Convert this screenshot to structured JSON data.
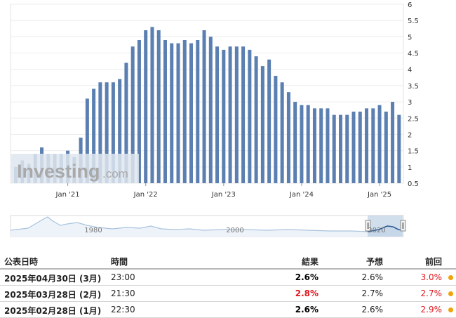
{
  "chart_data": {
    "type": "bar",
    "y_tick_labels": [
      "6",
      "5.5",
      "5",
      "4.5",
      "4",
      "3.5",
      "3",
      "2.5",
      "2",
      "1.5",
      "1",
      "0.5"
    ],
    "ylim": [
      0.5,
      6
    ],
    "x_tick_labels": [
      "Jan '21",
      "Jan '22",
      "Jan '23",
      "Jan '24",
      "Jan '25"
    ],
    "values": [
      1.0,
      1.2,
      1.1,
      1.4,
      1.6,
      1.4,
      1.4,
      1.4,
      1.5,
      1.3,
      1.9,
      3.1,
      3.4,
      3.6,
      3.6,
      3.6,
      3.7,
      4.2,
      4.7,
      4.9,
      5.2,
      5.3,
      5.2,
      4.9,
      4.8,
      4.8,
      4.9,
      4.8,
      4.9,
      5.2,
      5.0,
      4.7,
      4.6,
      4.7,
      4.7,
      4.7,
      4.6,
      4.4,
      4.1,
      4.3,
      3.8,
      3.6,
      3.3,
      3.0,
      2.9,
      2.9,
      2.8,
      2.8,
      2.8,
      2.6,
      2.6,
      2.6,
      2.7,
      2.7,
      2.8,
      2.8,
      2.9,
      2.7,
      3.0,
      2.6
    ],
    "bar_color": "#5a7fb0",
    "grid": true,
    "watermark_text": "Investing.com"
  },
  "navigator": {
    "labels": [
      "1980",
      "2000",
      "2020"
    ],
    "line_color": "#a9c3de",
    "selected_color": "#7aa2cc"
  },
  "table": {
    "headers": {
      "date": "公表日時",
      "time": "時間",
      "actual": "結果",
      "forecast": "予想",
      "previous": "前回"
    },
    "rows": [
      {
        "date": "2025年04月30日 (3月)",
        "time": "23:00",
        "actual": "2.6%",
        "actual_color": "#000000",
        "forecast": "2.6%",
        "previous": "3.0%",
        "previous_color": "#e0161d"
      },
      {
        "date": "2025年03月28日 (2月)",
        "time": "21:30",
        "actual": "2.8%",
        "actual_color": "#e0161d",
        "forecast": "2.7%",
        "previous": "2.7%",
        "previous_color": "#e0161d"
      },
      {
        "date": "2025年02月28日 (1月)",
        "time": "22:30",
        "actual": "2.6%",
        "actual_color": "#000000",
        "forecast": "2.6%",
        "previous": "2.9%",
        "previous_color": "#e0161d"
      }
    ]
  }
}
